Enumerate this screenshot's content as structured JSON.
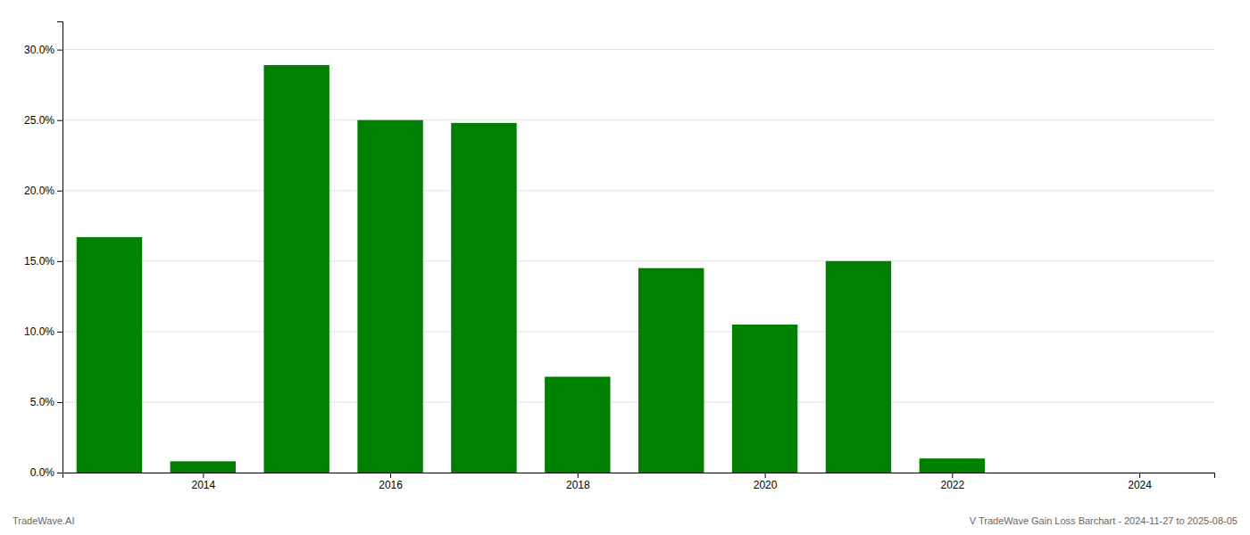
{
  "chart_data": {
    "type": "bar",
    "x": [
      2013,
      2014,
      2015,
      2016,
      2017,
      2018,
      2019,
      2020,
      2021,
      2022,
      2023,
      2024
    ],
    "values": [
      0.167,
      0.008,
      0.289,
      0.25,
      0.248,
      0.068,
      0.145,
      0.105,
      0.15,
      0.01,
      0.0,
      0.0
    ],
    "color": "#008000",
    "xlim": [
      2012.5,
      2024.8
    ],
    "xticks": [
      2014,
      2016,
      2018,
      2020,
      2022,
      2024
    ],
    "ylim": [
      0,
      0.32
    ],
    "yticks": [
      {
        "value": 0.0,
        "label": "0.0%"
      },
      {
        "value": 0.05,
        "label": "5.0%"
      },
      {
        "value": 0.1,
        "label": "10.0%"
      },
      {
        "value": 0.15,
        "label": "15.0%"
      },
      {
        "value": 0.2,
        "label": "20.0%"
      },
      {
        "value": 0.25,
        "label": "25.0%"
      },
      {
        "value": 0.3,
        "label": "30.0%"
      }
    ],
    "grid": true,
    "annotations": [
      "TradeWave.AI",
      "V TradeWave Gain Loss Barchart - 2024-11-27 to 2025-08-05"
    ]
  }
}
